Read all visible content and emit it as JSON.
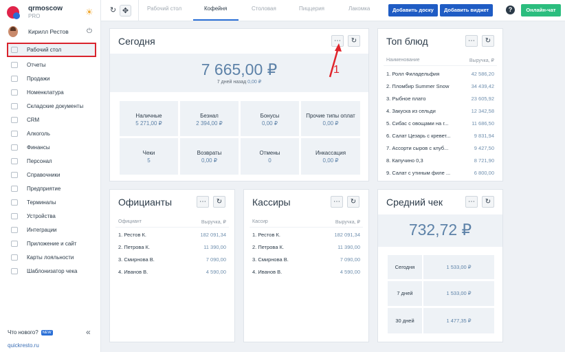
{
  "brand": {
    "name": "qrmoscow",
    "plan": "PRO"
  },
  "user": {
    "name": "Кирилл Рестов"
  },
  "nav": [
    {
      "label": "Рабочий стол",
      "active": true
    },
    {
      "label": "Отчеты"
    },
    {
      "label": "Продажи"
    },
    {
      "label": "Номенклатура"
    },
    {
      "label": "Складские документы"
    },
    {
      "label": "CRM"
    },
    {
      "label": "Алкоголь"
    },
    {
      "label": "Финансы"
    },
    {
      "label": "Персонал"
    },
    {
      "label": "Справочники"
    },
    {
      "label": "Предприятие"
    },
    {
      "label": "Терминалы"
    },
    {
      "label": "Устройства"
    },
    {
      "label": "Интеграции"
    },
    {
      "label": "Приложение и сайт"
    },
    {
      "label": "Карты лояльности"
    },
    {
      "label": "Шаблонизатор чека"
    }
  ],
  "footer": {
    "whats_new": "Что нового?",
    "new_badge": "NEW",
    "link": "quickresto.ru"
  },
  "tabs": [
    {
      "label": "Рабочий стол"
    },
    {
      "label": "Кофейня",
      "active": true
    },
    {
      "label": "Столовая"
    },
    {
      "label": "Пиццерия"
    },
    {
      "label": "Лакомка"
    }
  ],
  "buttons": {
    "add_board": "Добавить доску",
    "add_widget": "Добавить виджет",
    "chat": "Онлайн-чат",
    "help": "?"
  },
  "today": {
    "title": "Сегодня",
    "total": "7 665,00 ₽",
    "sub_prefix": "7 дней назад",
    "sub_value": "0,00 ₽",
    "stats": [
      {
        "label": "Наличные",
        "value": "5 271,00 ₽"
      },
      {
        "label": "Безнал",
        "value": "2 394,00 ₽"
      },
      {
        "label": "Бонусы",
        "value": "0,00 ₽"
      },
      {
        "label": "Прочие типы оплат",
        "value": "0,00 ₽"
      },
      {
        "label": "Чеки",
        "value": "5"
      },
      {
        "label": "Возвраты",
        "value": "0,00 ₽"
      },
      {
        "label": "Отмены",
        "value": "0"
      },
      {
        "label": "Инкассация",
        "value": "0,00 ₽"
      }
    ]
  },
  "top_dishes": {
    "title": "Топ блюд",
    "col_name": "Наименование",
    "col_value": "Выручка, ₽",
    "rows": [
      {
        "name": "1. Ролл Филадельфия",
        "value": "42 586,20"
      },
      {
        "name": "2. Пломбир Summer Snow",
        "value": "34 439,42"
      },
      {
        "name": "3. Рыбное плато",
        "value": "23 605,92"
      },
      {
        "name": "4. Закуска из сельди",
        "value": "12 342,58"
      },
      {
        "name": "5. Сибас с овощами на г...",
        "value": "11 686,50"
      },
      {
        "name": "6. Салат Цезарь с кревет...",
        "value": "9 831,94"
      },
      {
        "name": "7. Ассорти сыров с клуб...",
        "value": "9 427,50"
      },
      {
        "name": "8. Капучино 0,3",
        "value": "8 721,90"
      },
      {
        "name": "9. Салат с утиным филе ...",
        "value": "6 800,00"
      }
    ]
  },
  "waiters": {
    "title": "Официанты",
    "col_name": "Официант",
    "col_value": "Выручка, ₽",
    "rows": [
      {
        "name": "1. Рестов К.",
        "value": "182 091,34"
      },
      {
        "name": "2. Петрова К.",
        "value": "11 390,00"
      },
      {
        "name": "3. Смирнова В.",
        "value": "7 090,00"
      },
      {
        "name": "4. Иванов В.",
        "value": "4 590,00"
      }
    ]
  },
  "cashiers": {
    "title": "Кассиры",
    "col_name": "Кассир",
    "col_value": "Выручка, ₽",
    "rows": [
      {
        "name": "1. Рестов К.",
        "value": "182 091,34"
      },
      {
        "name": "2. Петрова К.",
        "value": "11 390,00"
      },
      {
        "name": "3. Смирнова В.",
        "value": "7 090,00"
      },
      {
        "name": "4. Иванов В.",
        "value": "4 590,00"
      }
    ]
  },
  "avg_check": {
    "title": "Средний чек",
    "value": "732,72 ₽",
    "rows": [
      {
        "label": "Сегодня",
        "value": "1 533,00 ₽"
      },
      {
        "label": "7 дней",
        "value": "1 533,00 ₽"
      },
      {
        "label": "30 дней",
        "value": "1 477,35 ₽"
      }
    ]
  },
  "annotation": {
    "number": "1",
    "color": "#e0242b"
  },
  "icons": {
    "more": "⋯",
    "refresh": "↻",
    "sync": "↻",
    "move": "✥",
    "power": "⏻",
    "collapse": "«",
    "sun": "☀"
  },
  "colors": {
    "primary": "#1f5cc4",
    "chat": "#2bbd7e",
    "accent_value": "#5d82a8",
    "active_border": "#d9232d"
  }
}
